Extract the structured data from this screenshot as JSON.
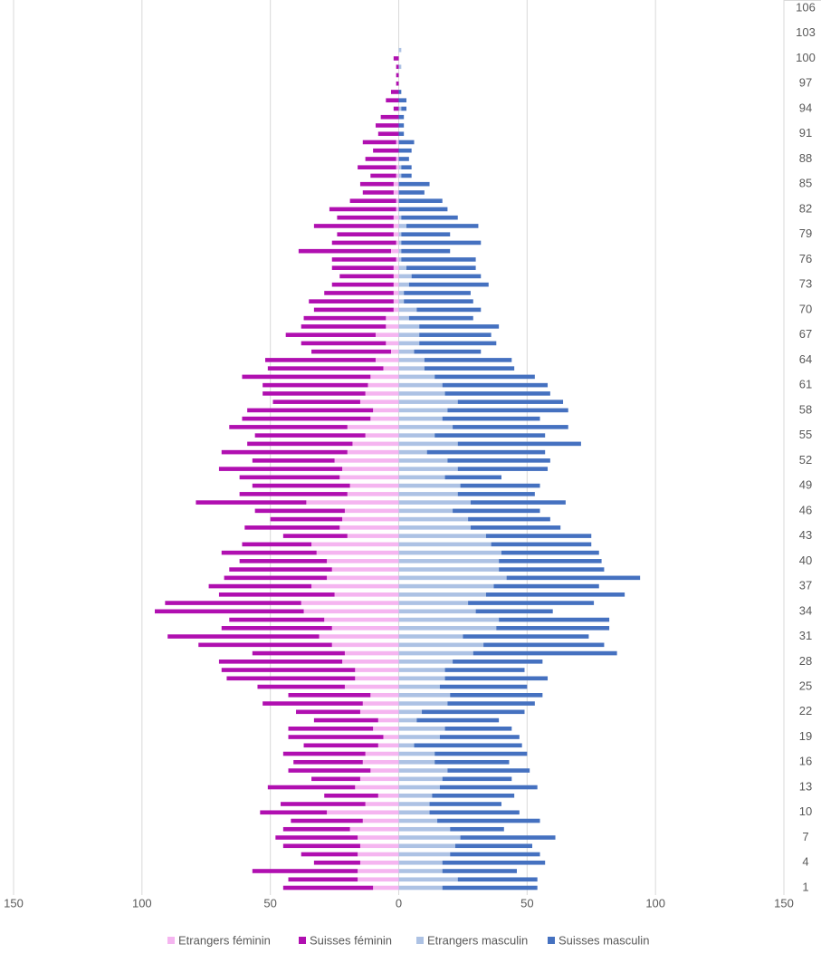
{
  "chart_data": {
    "type": "bar",
    "horizontal": true,
    "stacked": true,
    "grid": true,
    "legend": "bottom",
    "categories": [
      1,
      null,
      null,
      4,
      null,
      null,
      7,
      null,
      null,
      10,
      null,
      null,
      13,
      null,
      null,
      16,
      null,
      null,
      19,
      null,
      null,
      22,
      null,
      null,
      25,
      null,
      null,
      28,
      null,
      null,
      31,
      null,
      null,
      34,
      null,
      null,
      37,
      null,
      null,
      40,
      null,
      null,
      43,
      null,
      null,
      46,
      null,
      null,
      49,
      null,
      null,
      52,
      null,
      null,
      55,
      null,
      null,
      58,
      null,
      null,
      61,
      null,
      null,
      64,
      null,
      null,
      67,
      null,
      null,
      70,
      null,
      null,
      73,
      null,
      null,
      76,
      null,
      null,
      79,
      null,
      null,
      82,
      null,
      null,
      85,
      null,
      null,
      88,
      null,
      null,
      91,
      null,
      null,
      94,
      null,
      null,
      97,
      null,
      null,
      100,
      null,
      null,
      103,
      null,
      null,
      106
    ],
    "xlim": [
      -150,
      150
    ],
    "xticks": [
      {
        "value": -150,
        "label": "150"
      },
      {
        "value": -100,
        "label": "100"
      },
      {
        "value": -50,
        "label": "50"
      },
      0,
      50,
      100,
      150
    ],
    "series": [
      {
        "name": "Etrangers féminin",
        "color": "#f5b5f0",
        "values": [
          -10,
          -16,
          -16,
          -15,
          -16,
          -15,
          -16,
          -19,
          -14,
          -28,
          -13,
          -8,
          -17,
          -15,
          -11,
          -14,
          -13,
          -8,
          -6,
          -10,
          -8,
          -15,
          -14,
          -11,
          -21,
          -17,
          -17,
          -22,
          -21,
          -26,
          -31,
          -26,
          -29,
          -37,
          -38,
          -25,
          -34,
          -28,
          -26,
          -28,
          -32,
          -34,
          -20,
          -23,
          -22,
          -21,
          -36,
          -20,
          -19,
          -23,
          -22,
          -25,
          -20,
          -18,
          -13,
          -20,
          -11,
          -10,
          -15,
          -13,
          -12,
          -11,
          -6,
          -9,
          -3,
          -5,
          -9,
          -5,
          -5,
          -2,
          -2,
          -2,
          -2,
          -2,
          -2,
          -1,
          -3,
          -1,
          -2,
          -2,
          -2,
          -1,
          -1,
          -2,
          -2,
          -1,
          -1,
          -1,
          0,
          -1,
          0,
          0,
          0,
          0,
          0,
          0,
          0,
          0,
          0,
          0,
          0,
          0,
          0,
          0,
          0,
          0
        ]
      },
      {
        "name": "Suisses féminin",
        "color": "#b00fb0",
        "values": [
          -35,
          -27,
          -41,
          -18,
          -22,
          -30,
          -32,
          -26,
          -28,
          -26,
          -33,
          -21,
          -34,
          -19,
          -32,
          -27,
          -32,
          -29,
          -37,
          -33,
          -25,
          -25,
          -39,
          -32,
          -34,
          -50,
          -52,
          -48,
          -36,
          -52,
          -59,
          -43,
          -37,
          -58,
          -53,
          -45,
          -40,
          -40,
          -40,
          -34,
          -37,
          -27,
          -25,
          -37,
          -28,
          -35,
          -43,
          -42,
          -38,
          -39,
          -48,
          -32,
          -49,
          -41,
          -43,
          -46,
          -50,
          -49,
          -34,
          -40,
          -41,
          -50,
          -45,
          -43,
          -31,
          -33,
          -35,
          -33,
          -32,
          -31,
          -33,
          -27,
          -24,
          -21,
          -24,
          -25,
          -36,
          -25,
          -22,
          -31,
          -22,
          -26,
          -18,
          -12,
          -13,
          -10,
          -15,
          -12,
          -10,
          -13,
          -8,
          -9,
          -7,
          -2,
          -5,
          -3,
          -1,
          -1,
          -1,
          -2,
          0,
          0,
          0,
          0,
          0,
          0
        ]
      },
      {
        "name": "Etrangers masculin",
        "color": "#adc2e4",
        "values": [
          17,
          23,
          17,
          17,
          20,
          22,
          24,
          20,
          15,
          12,
          12,
          13,
          16,
          17,
          19,
          14,
          14,
          6,
          16,
          18,
          7,
          9,
          19,
          20,
          16,
          18,
          18,
          21,
          29,
          33,
          25,
          38,
          39,
          30,
          27,
          34,
          37,
          42,
          39,
          39,
          40,
          36,
          34,
          28,
          27,
          21,
          28,
          23,
          24,
          18,
          23,
          19,
          11,
          23,
          14,
          21,
          17,
          19,
          23,
          18,
          17,
          14,
          10,
          10,
          6,
          8,
          8,
          8,
          4,
          7,
          2,
          2,
          4,
          5,
          3,
          1,
          1,
          1,
          1,
          3,
          1,
          0,
          0,
          0,
          0,
          1,
          1,
          0,
          0,
          0,
          0,
          0,
          0,
          1,
          0,
          0,
          0,
          0,
          1,
          0,
          1,
          0,
          0,
          0,
          0,
          0
        ]
      },
      {
        "name": "Suisses masculin",
        "color": "#4571c0",
        "values": [
          37,
          31,
          29,
          40,
          35,
          30,
          37,
          21,
          40,
          35,
          28,
          32,
          38,
          27,
          32,
          29,
          36,
          42,
          31,
          26,
          32,
          40,
          34,
          36,
          34,
          40,
          31,
          35,
          56,
          47,
          49,
          44,
          43,
          30,
          49,
          54,
          41,
          52,
          41,
          40,
          38,
          39,
          41,
          35,
          32,
          34,
          37,
          30,
          31,
          22,
          35,
          40,
          46,
          48,
          43,
          45,
          38,
          47,
          41,
          41,
          41,
          39,
          35,
          34,
          26,
          30,
          28,
          31,
          25,
          25,
          27,
          26,
          31,
          27,
          27,
          29,
          19,
          31,
          19,
          28,
          22,
          19,
          17,
          10,
          12,
          4,
          4,
          4,
          5,
          6,
          2,
          2,
          2,
          2,
          3,
          1,
          0,
          0,
          0,
          0,
          0,
          0,
          0,
          0,
          0,
          0
        ]
      }
    ]
  }
}
